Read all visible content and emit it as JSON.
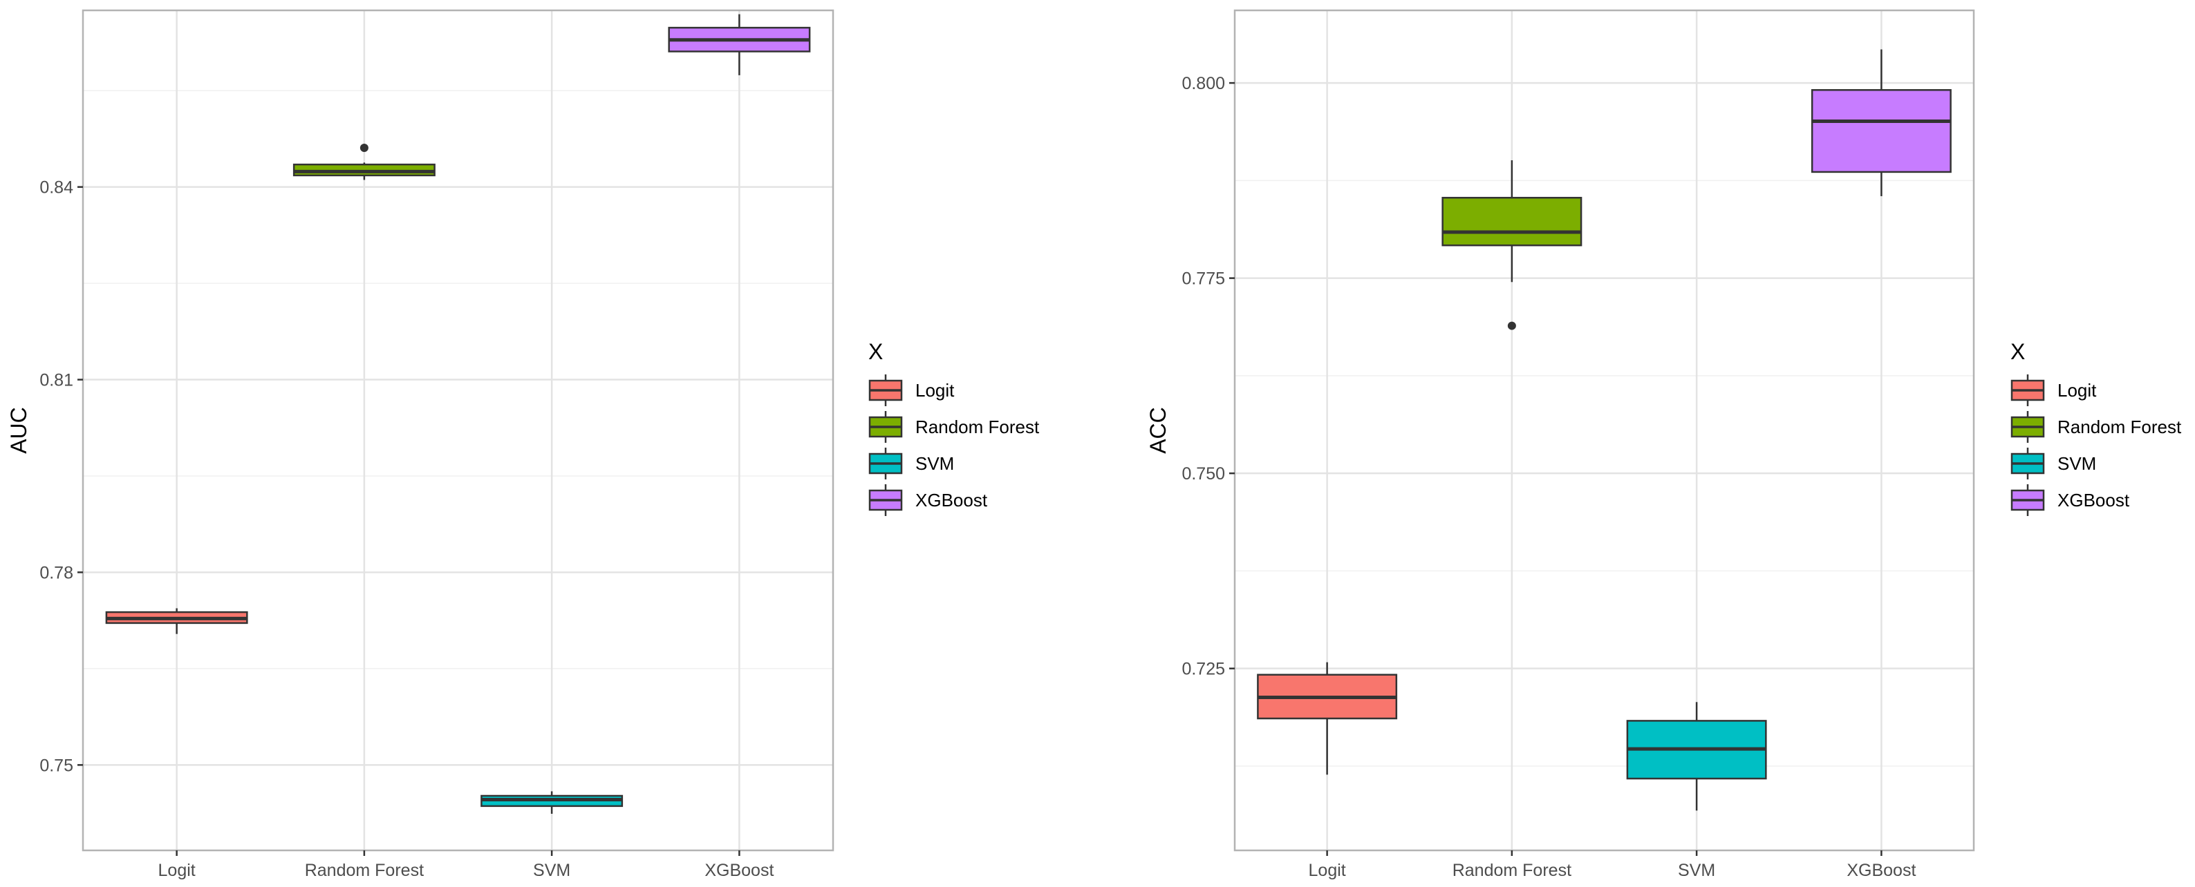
{
  "colors": {
    "Logit": "#F8766D",
    "Random Forest": "#7CAE00",
    "SVM": "#00BFC4",
    "XGBoost": "#C77CFF",
    "grid_major": "#e3e3e3",
    "grid_minor": "#f0f0f0",
    "panel_border": "#b3b3b3"
  },
  "chart_data": [
    {
      "type": "boxplot",
      "ylabel": "AUC",
      "xlabel": "",
      "categories": [
        "Logit",
        "Random Forest",
        "SVM",
        "XGBoost"
      ],
      "ylim": [
        0.7367,
        0.8675
      ],
      "yticks": [
        0.75,
        0.78,
        0.81,
        0.84
      ],
      "ytick_labels": [
        "0.75",
        "0.78",
        "0.81",
        "0.84"
      ],
      "boxes": [
        {
          "name": "Logit",
          "whisker_low": 0.7704,
          "q1": 0.7721,
          "median": 0.7728,
          "q3": 0.7738,
          "whisker_high": 0.7744,
          "outliers": []
        },
        {
          "name": "Random Forest",
          "whisker_low": 0.8411,
          "q1": 0.8418,
          "median": 0.8424,
          "q3": 0.8435,
          "whisker_high": 0.8438,
          "outliers": [
            0.8461
          ]
        },
        {
          "name": "SVM",
          "whisker_low": 0.7424,
          "q1": 0.7436,
          "median": 0.7446,
          "q3": 0.7452,
          "whisker_high": 0.7459,
          "outliers": []
        },
        {
          "name": "XGBoost",
          "whisker_low": 0.8574,
          "q1": 0.8611,
          "median": 0.8629,
          "q3": 0.8648,
          "whisker_high": 0.8669,
          "outliers": []
        }
      ]
    },
    {
      "type": "boxplot",
      "ylabel": "ACC",
      "xlabel": "",
      "categories": [
        "Logit",
        "Random Forest",
        "SVM",
        "XGBoost"
      ],
      "ylim": [
        0.7017,
        0.8093
      ],
      "yticks": [
        0.725,
        0.75,
        0.775,
        0.8
      ],
      "ytick_labels": [
        "0.725",
        "0.750",
        "0.775",
        "0.800"
      ],
      "boxes": [
        {
          "name": "Logit",
          "whisker_low": 0.7114,
          "q1": 0.7186,
          "median": 0.7213,
          "q3": 0.7242,
          "whisker_high": 0.7258,
          "outliers": []
        },
        {
          "name": "Random Forest",
          "whisker_low": 0.7745,
          "q1": 0.7792,
          "median": 0.7809,
          "q3": 0.7853,
          "whisker_high": 0.7901,
          "outliers": [
            0.7689
          ]
        },
        {
          "name": "SVM",
          "whisker_low": 0.7068,
          "q1": 0.7109,
          "median": 0.7147,
          "q3": 0.7183,
          "whisker_high": 0.7207,
          "outliers": []
        },
        {
          "name": "XGBoost",
          "whisker_low": 0.7855,
          "q1": 0.7886,
          "median": 0.7951,
          "q3": 0.7991,
          "whisker_high": 0.8043,
          "outliers": []
        }
      ]
    }
  ],
  "legend": {
    "title": "X",
    "items": [
      {
        "label": "Logit",
        "color": "#F8766D"
      },
      {
        "label": "Random Forest",
        "color": "#7CAE00"
      },
      {
        "label": "SVM",
        "color": "#00BFC4"
      },
      {
        "label": "XGBoost",
        "color": "#C77CFF"
      }
    ]
  }
}
